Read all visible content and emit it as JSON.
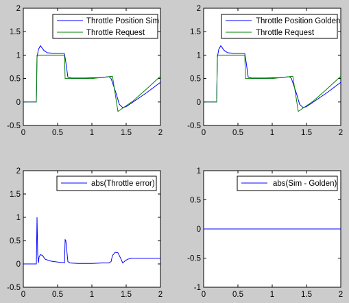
{
  "window": {
    "background": "#cccccc"
  },
  "chart_data": [
    {
      "type": "line",
      "xlim": [
        0,
        2
      ],
      "ylim": [
        -0.5,
        2
      ],
      "xticks": [
        0,
        0.5,
        1,
        1.5,
        2
      ],
      "yticks": [
        -0.5,
        0,
        0.5,
        1,
        1.5,
        2
      ],
      "xtick_labels": [
        "0",
        "0.5",
        "1",
        "1.5",
        "2"
      ],
      "ytick_labels": [
        "-0.5",
        "0",
        "0.5",
        "1",
        "1.5",
        "2"
      ],
      "grid": false,
      "legend": "top-right",
      "series": [
        {
          "name": "Throttle Position Sim",
          "color": "#0000ff",
          "points": [
            [
              0,
              0
            ],
            [
              0.15,
              0
            ],
            [
              0.19,
              0
            ],
            [
              0.2,
              0.95
            ],
            [
              0.22,
              1.12
            ],
            [
              0.25,
              1.2
            ],
            [
              0.3,
              1.1
            ],
            [
              0.35,
              1.05
            ],
            [
              0.45,
              1.04
            ],
            [
              0.55,
              1.04
            ],
            [
              0.6,
              1.03
            ],
            [
              0.62,
              0.85
            ],
            [
              0.65,
              0.53
            ],
            [
              0.7,
              0.51
            ],
            [
              0.9,
              0.51
            ],
            [
              1.1,
              0.52
            ],
            [
              1.25,
              0.54
            ],
            [
              1.28,
              0.5
            ],
            [
              1.35,
              0.2
            ],
            [
              1.4,
              -0.05
            ],
            [
              1.45,
              -0.12
            ],
            [
              1.5,
              -0.1
            ],
            [
              1.6,
              0
            ],
            [
              1.8,
              0.2
            ],
            [
              2,
              0.42
            ]
          ]
        },
        {
          "name": "Throttle Request",
          "color": "#008000",
          "points": [
            [
              0,
              0
            ],
            [
              0.19,
              0
            ],
            [
              0.2,
              1
            ],
            [
              0.6,
              1
            ],
            [
              0.61,
              0.5
            ],
            [
              1.0,
              0.5
            ],
            [
              1.2,
              0.53
            ],
            [
              1.3,
              0.55
            ],
            [
              1.38,
              -0.2
            ],
            [
              1.46,
              -0.12
            ],
            [
              1.6,
              0.02
            ],
            [
              1.8,
              0.28
            ],
            [
              2,
              0.55
            ]
          ]
        }
      ]
    },
    {
      "type": "line",
      "xlim": [
        0,
        2
      ],
      "ylim": [
        -0.5,
        2
      ],
      "xticks": [
        0,
        0.5,
        1,
        1.5,
        2
      ],
      "yticks": [
        -0.5,
        0,
        0.5,
        1,
        1.5,
        2
      ],
      "xtick_labels": [
        "0",
        "0.5",
        "1",
        "1.5",
        "2"
      ],
      "ytick_labels": [
        "-0.5",
        "0",
        "0.5",
        "1",
        "1.5",
        "2"
      ],
      "grid": false,
      "legend": "top-right",
      "series": [
        {
          "name": "Throttle Position Golden",
          "color": "#0000ff",
          "points": [
            [
              0,
              0
            ],
            [
              0.15,
              0
            ],
            [
              0.19,
              0
            ],
            [
              0.2,
              0.95
            ],
            [
              0.22,
              1.12
            ],
            [
              0.25,
              1.2
            ],
            [
              0.3,
              1.1
            ],
            [
              0.35,
              1.05
            ],
            [
              0.45,
              1.04
            ],
            [
              0.55,
              1.04
            ],
            [
              0.6,
              1.03
            ],
            [
              0.62,
              0.85
            ],
            [
              0.65,
              0.53
            ],
            [
              0.7,
              0.51
            ],
            [
              0.9,
              0.51
            ],
            [
              1.1,
              0.52
            ],
            [
              1.25,
              0.54
            ],
            [
              1.28,
              0.5
            ],
            [
              1.35,
              0.2
            ],
            [
              1.4,
              -0.05
            ],
            [
              1.45,
              -0.12
            ],
            [
              1.5,
              -0.1
            ],
            [
              1.6,
              0
            ],
            [
              1.8,
              0.2
            ],
            [
              2,
              0.42
            ]
          ]
        },
        {
          "name": "Throttle Request",
          "color": "#008000",
          "points": [
            [
              0,
              0
            ],
            [
              0.19,
              0
            ],
            [
              0.2,
              1
            ],
            [
              0.6,
              1
            ],
            [
              0.61,
              0.5
            ],
            [
              1.0,
              0.5
            ],
            [
              1.2,
              0.53
            ],
            [
              1.3,
              0.55
            ],
            [
              1.38,
              -0.2
            ],
            [
              1.46,
              -0.12
            ],
            [
              1.6,
              0.02
            ],
            [
              1.8,
              0.28
            ],
            [
              2,
              0.55
            ]
          ]
        }
      ]
    },
    {
      "type": "line",
      "xlim": [
        0,
        2
      ],
      "ylim": [
        -0.5,
        2
      ],
      "xticks": [
        0,
        0.5,
        1,
        1.5,
        2
      ],
      "yticks": [
        -0.5,
        0,
        0.5,
        1,
        1.5,
        2
      ],
      "xtick_labels": [
        "0",
        "0.5",
        "1",
        "1.5",
        "2"
      ],
      "ytick_labels": [
        "-0.5",
        "0",
        "0.5",
        "1",
        "1.5",
        "2"
      ],
      "grid": false,
      "legend": "top-right",
      "series": [
        {
          "name": "abs(Throttle error)",
          "color": "#0000ff",
          "points": [
            [
              0,
              0
            ],
            [
              0.19,
              0
            ],
            [
              0.2,
              1.0
            ],
            [
              0.21,
              0.2
            ],
            [
              0.22,
              0.02
            ],
            [
              0.23,
              0.15
            ],
            [
              0.25,
              0.2
            ],
            [
              0.28,
              0.18
            ],
            [
              0.32,
              0.1
            ],
            [
              0.4,
              0.06
            ],
            [
              0.5,
              0.04
            ],
            [
              0.58,
              0.03
            ],
            [
              0.6,
              0.02
            ],
            [
              0.61,
              0.52
            ],
            [
              0.62,
              0.5
            ],
            [
              0.63,
              0.35
            ],
            [
              0.65,
              0.05
            ],
            [
              0.68,
              0.02
            ],
            [
              0.8,
              0.01
            ],
            [
              1.0,
              0.01
            ],
            [
              1.15,
              0.02
            ],
            [
              1.25,
              0.02
            ],
            [
              1.28,
              0.05
            ],
            [
              1.3,
              0.18
            ],
            [
              1.34,
              0.25
            ],
            [
              1.38,
              0.24
            ],
            [
              1.42,
              0.12
            ],
            [
              1.45,
              0.02
            ],
            [
              1.48,
              0.06
            ],
            [
              1.52,
              0.1
            ],
            [
              1.58,
              0.12
            ],
            [
              1.8,
              0.12
            ],
            [
              2,
              0.12
            ]
          ]
        }
      ]
    },
    {
      "type": "line",
      "xlim": [
        0,
        2
      ],
      "ylim": [
        -1,
        1
      ],
      "xticks": [
        0,
        0.5,
        1,
        1.5,
        2
      ],
      "yticks": [
        -1,
        -0.5,
        0,
        0.5,
        1
      ],
      "xtick_labels": [
        "0",
        "0.5",
        "1",
        "1.5",
        "2"
      ],
      "ytick_labels": [
        "-1",
        "-0.5",
        "0",
        "0.5",
        "1"
      ],
      "grid": false,
      "legend": "top-right",
      "series": [
        {
          "name": "abs(Sim - Golden)",
          "color": "#0000ff",
          "points": [
            [
              0,
              0
            ],
            [
              2,
              0
            ]
          ]
        }
      ]
    }
  ]
}
